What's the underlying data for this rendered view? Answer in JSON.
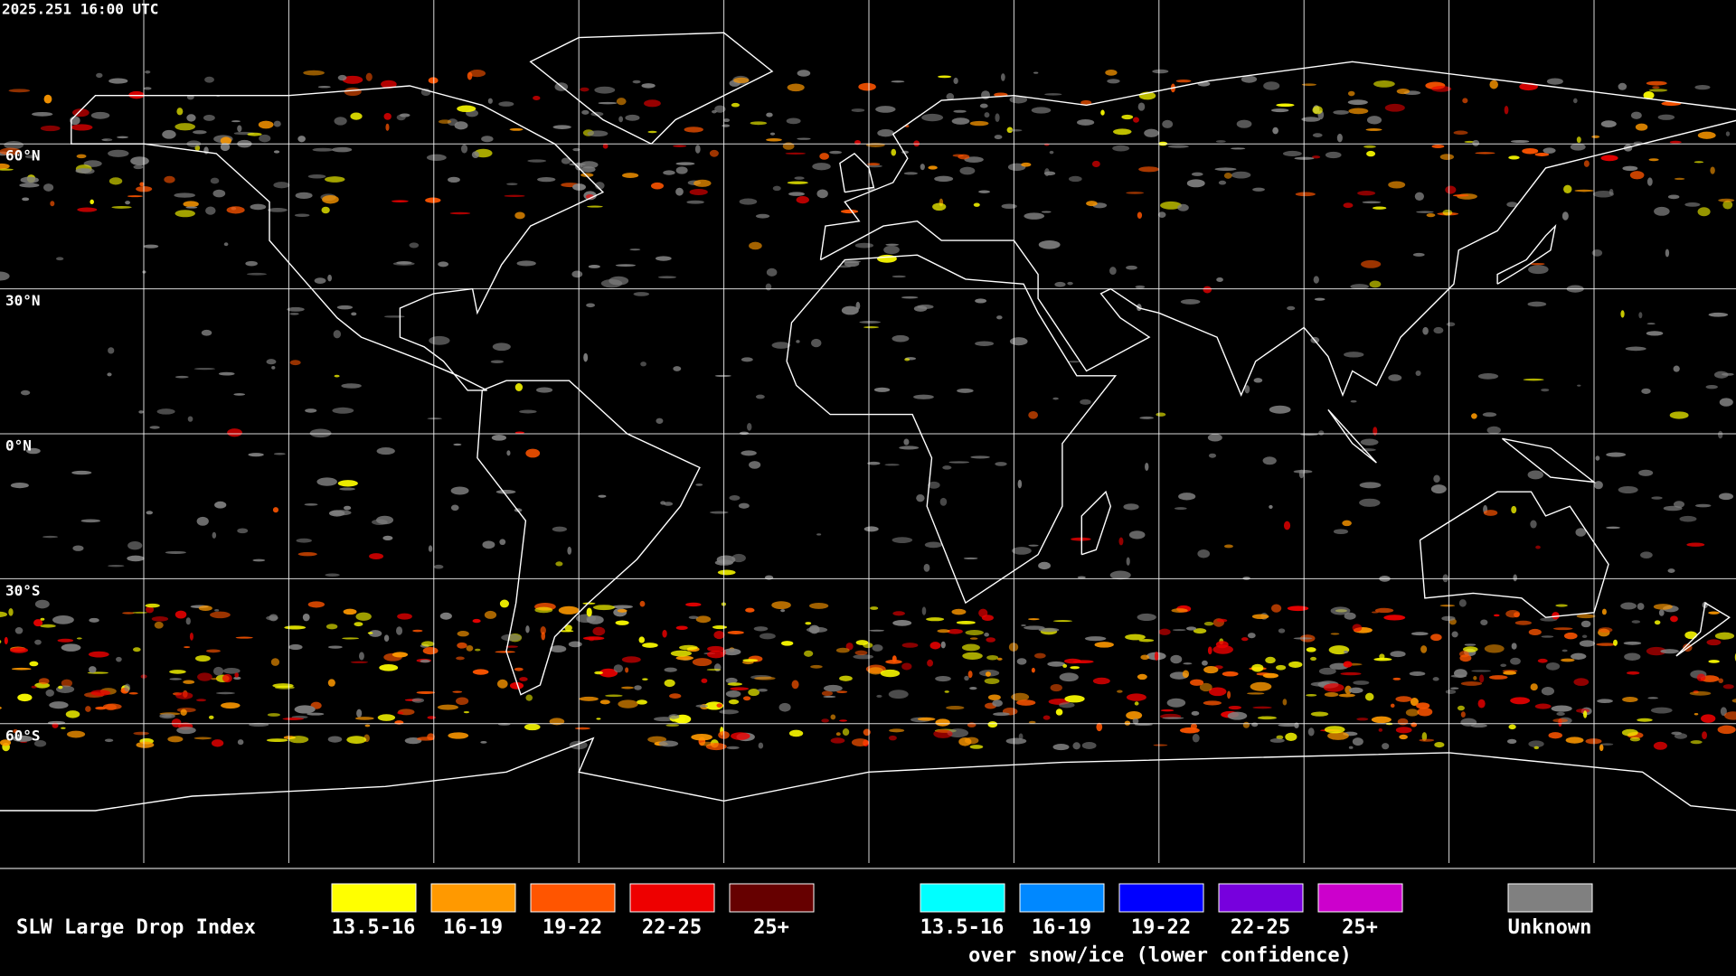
{
  "header": {
    "timestamp": "2025.251 16:00 UTC"
  },
  "grid": {
    "lat_labels": [
      "60°N",
      "30°N",
      "0°N",
      "30°S",
      "60°S"
    ]
  },
  "legend": {
    "title": "SLW Large Drop Index",
    "groups": [
      {
        "items": [
          {
            "label": "13.5-16",
            "color": "#ffff00"
          },
          {
            "label": "16-19",
            "color": "#ff9900"
          },
          {
            "label": "19-22",
            "color": "#ff5500"
          },
          {
            "label": "22-25",
            "color": "#ee0000"
          },
          {
            "label": "25+",
            "color": "#660000"
          }
        ]
      },
      {
        "caption": "over snow/ice (lower confidence)",
        "items": [
          {
            "label": "13.5-16",
            "color": "#00ffff"
          },
          {
            "label": "16-19",
            "color": "#0088ff"
          },
          {
            "label": "19-22",
            "color": "#0000ff"
          },
          {
            "label": "22-25",
            "color": "#7700dd"
          },
          {
            "label": "25+",
            "color": "#cc00cc"
          }
        ]
      },
      {
        "items": [
          {
            "label": "Unknown",
            "color": "#808080"
          }
        ]
      }
    ]
  }
}
